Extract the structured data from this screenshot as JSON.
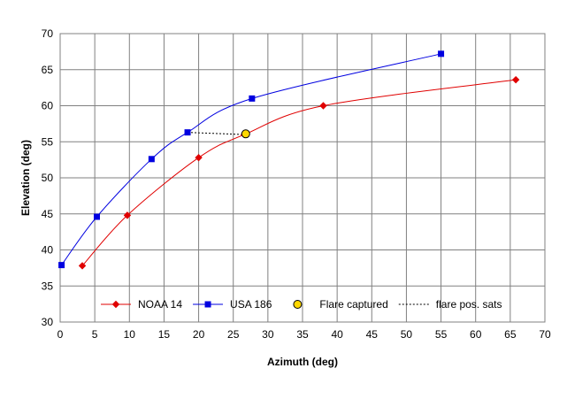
{
  "chart_data": {
    "type": "scatter",
    "xlabel": "Azimuth (deg)",
    "ylabel": "Elevation (deg)",
    "xlim": [
      0,
      70
    ],
    "ylim": [
      30,
      70
    ],
    "x_ticks": [
      "0",
      "5",
      "10",
      "15",
      "20",
      "25",
      "30",
      "35",
      "40",
      "45",
      "50",
      "55",
      "60",
      "65",
      "70"
    ],
    "y_ticks": [
      "30",
      "35",
      "40",
      "45",
      "50",
      "55",
      "60",
      "65",
      "70"
    ],
    "grid": true,
    "legend_position": "bottom-inside",
    "series": [
      {
        "name": "NOAA 14",
        "style": "line-marker",
        "marker": "diamond",
        "color": "#e00000",
        "x": [
          3.2,
          9.7,
          20.0,
          26.6,
          38.0,
          65.8
        ],
        "y": [
          37.8,
          44.8,
          52.8,
          56.0,
          60.0,
          63.6
        ]
      },
      {
        "name": "USA 186",
        "style": "line-marker",
        "marker": "square",
        "color": "#0000e0",
        "x": [
          0.2,
          5.3,
          13.2,
          18.4,
          27.7,
          55.0
        ],
        "y": [
          37.9,
          44.6,
          52.6,
          56.3,
          61.0,
          67.2
        ]
      },
      {
        "name": "Flare captured",
        "style": "marker",
        "marker": "circle",
        "color": "#ffd700",
        "x": [
          26.8
        ],
        "y": [
          56.1
        ]
      },
      {
        "name": "flare pos. sats",
        "style": "dashed-line",
        "color": "#000000",
        "x": [
          18.4,
          26.6
        ],
        "y": [
          56.3,
          56.0
        ]
      }
    ]
  }
}
